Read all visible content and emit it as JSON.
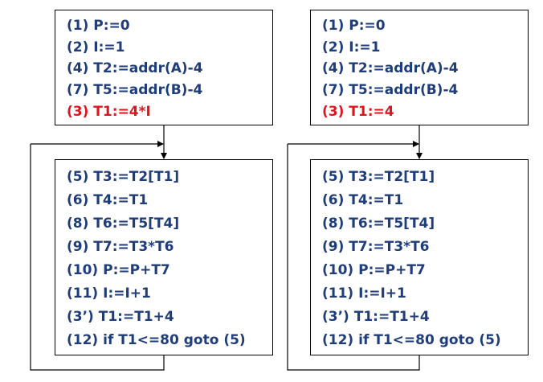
{
  "left": {
    "top_block": [
      {
        "text": "(1) P:=0",
        "color": "#1f3d7a"
      },
      {
        "text": "(2) I:=1",
        "color": "#1f3d7a"
      },
      {
        "text": "(4) T2:=addr(A)-4",
        "color": "#1f3d7a"
      },
      {
        "text": "(7) T5:=addr(B)-4",
        "color": "#1f3d7a"
      },
      {
        "text": "(3) T1:=4*I",
        "color": "#e0141e"
      }
    ],
    "loop_block": [
      {
        "text": "(5) T3:=T2[T1]"
      },
      {
        "text": "(6) T4:=T1"
      },
      {
        "text": "(8) T6:=T5[T4]"
      },
      {
        "text": "(9) T7:=T3*T6"
      },
      {
        "text": "(10) P:=P+T7"
      },
      {
        "text": "(11) I:=I+1"
      },
      {
        "text": "(3’) T1:=T1+4"
      },
      {
        "text": "(12) if T1<=80 goto (5)"
      }
    ]
  },
  "right": {
    "top_block": [
      {
        "text": "(1) P:=0",
        "color": "#1f3d7a"
      },
      {
        "text": "(2) I:=1",
        "color": "#1f3d7a"
      },
      {
        "text": "(4) T2:=addr(A)-4",
        "color": "#1f3d7a"
      },
      {
        "text": "(7) T5:=addr(B)-4",
        "color": "#1f3d7a"
      },
      {
        "text": "(3) T1:=4",
        "color": "#e0141e"
      }
    ],
    "loop_block": [
      {
        "text": "(5) T3:=T2[T1]"
      },
      {
        "text": "(6) T4:=T1"
      },
      {
        "text": "(8) T6:=T5[T4]"
      },
      {
        "text": "(9) T7:=T3*T6"
      },
      {
        "text": "(10) P:=P+T7"
      },
      {
        "text": "(11) I:=I+1"
      },
      {
        "text": "(3’) T1:=T1+4"
      },
      {
        "text": "(12) if T1<=80 goto (5)"
      }
    ]
  },
  "colors": {
    "code_text": "#1f3d7a",
    "highlight": "#e0141e"
  }
}
